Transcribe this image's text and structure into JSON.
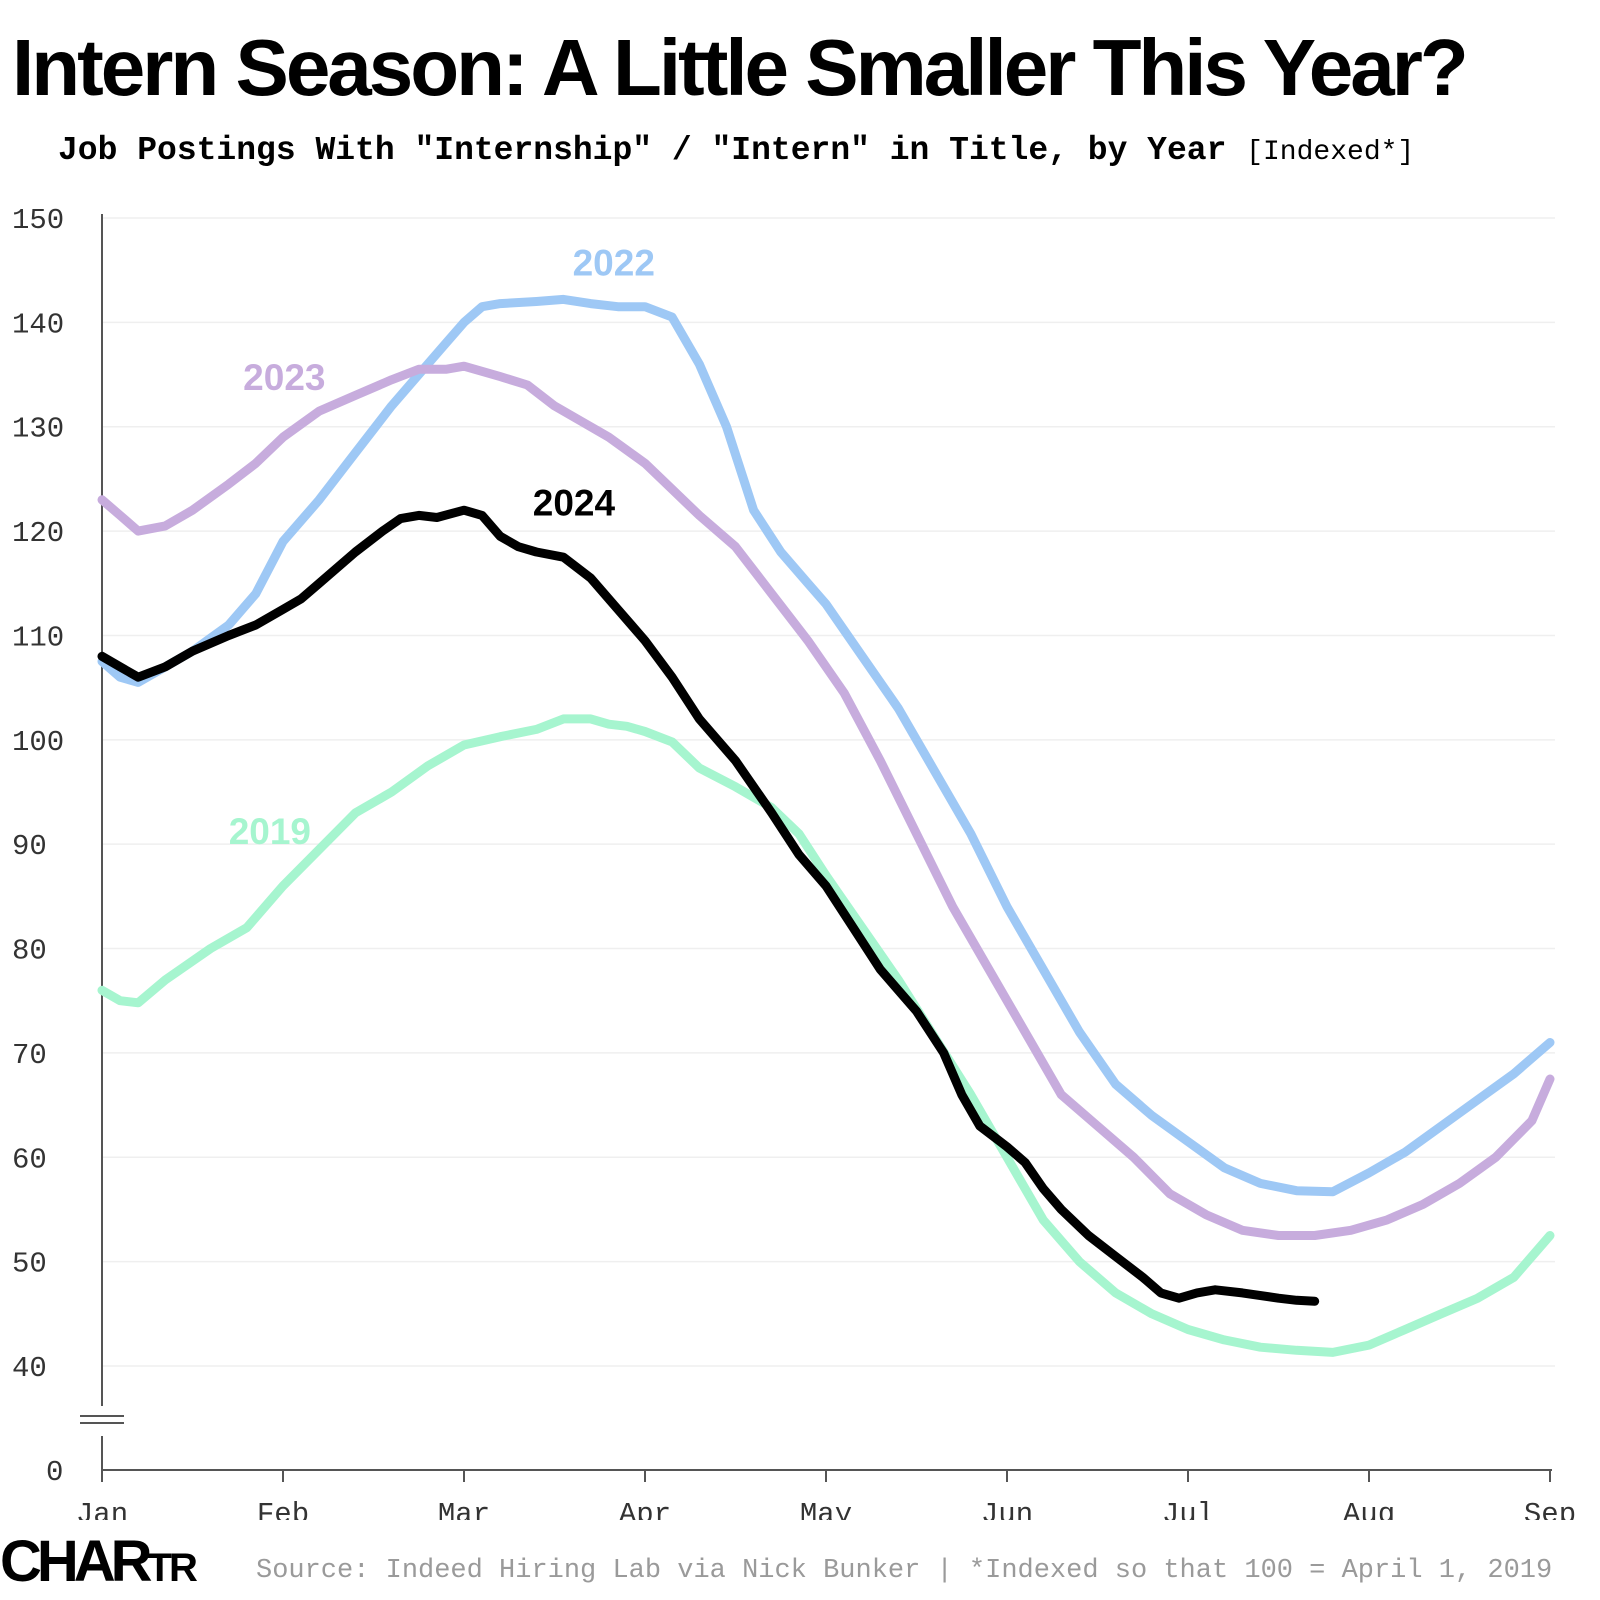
{
  "title": "Intern Season: A Little Smaller This Year?",
  "subtitle": "Job Postings With \"Internship\" / \"Intern\" in Title, by Year",
  "subtitle_note": "[Indexed*]",
  "logo": {
    "big": "CHAR",
    "small": "TR"
  },
  "source": "Source: Indeed Hiring Lab via Nick Bunker | *Indexed so that 100 = April 1, 2019",
  "chart_data": {
    "type": "line",
    "x_unit": "month",
    "xlim": [
      0,
      8
    ],
    "x_ticks": [
      0,
      1,
      2,
      3,
      4,
      5,
      6,
      7,
      8
    ],
    "x_tick_labels": [
      "Jan",
      "Feb",
      "Mar",
      "Apr",
      "May",
      "Jun",
      "Jul",
      "Aug",
      "Sep"
    ],
    "ylim": [
      40,
      150
    ],
    "y_ticks": [
      40,
      50,
      60,
      70,
      80,
      90,
      100,
      110,
      120,
      130,
      140,
      150
    ],
    "y_axis_break": true,
    "y_break_label": "0",
    "grid": "horizontal",
    "series": [
      {
        "name": "2019",
        "color": "#a6f5cf",
        "label_at": [
          0.7,
          90
        ],
        "points": [
          [
            0,
            76
          ],
          [
            0.1,
            75
          ],
          [
            0.2,
            74.8
          ],
          [
            0.35,
            77
          ],
          [
            0.6,
            80
          ],
          [
            0.8,
            82
          ],
          [
            1,
            86
          ],
          [
            1.2,
            89.5
          ],
          [
            1.4,
            93
          ],
          [
            1.6,
            95
          ],
          [
            1.8,
            97.5
          ],
          [
            2,
            99.5
          ],
          [
            2.2,
            100.3
          ],
          [
            2.4,
            101
          ],
          [
            2.55,
            102
          ],
          [
            2.7,
            102
          ],
          [
            2.8,
            101.5
          ],
          [
            2.9,
            101.3
          ],
          [
            3,
            100.8
          ],
          [
            3.15,
            99.8
          ],
          [
            3.3,
            97.3
          ],
          [
            3.5,
            95.5
          ],
          [
            3.7,
            93.5
          ],
          [
            3.85,
            91
          ],
          [
            4,
            87
          ],
          [
            4.2,
            82
          ],
          [
            4.4,
            77
          ],
          [
            4.6,
            71.5
          ],
          [
            4.8,
            66
          ],
          [
            5,
            60
          ],
          [
            5.2,
            54
          ],
          [
            5.4,
            50
          ],
          [
            5.6,
            47
          ],
          [
            5.8,
            45
          ],
          [
            6,
            43.5
          ],
          [
            6.2,
            42.5
          ],
          [
            6.4,
            41.8
          ],
          [
            6.6,
            41.5
          ],
          [
            6.8,
            41.3
          ],
          [
            7,
            42
          ],
          [
            7.2,
            43.5
          ],
          [
            7.4,
            45
          ],
          [
            7.6,
            46.5
          ],
          [
            7.8,
            48.5
          ],
          [
            8,
            52.5
          ]
        ]
      },
      {
        "name": "2022",
        "color": "#9ec8f5",
        "label_at": [
          2.6,
          144.5
        ],
        "points": [
          [
            0,
            107.5
          ],
          [
            0.1,
            106
          ],
          [
            0.2,
            105.5
          ],
          [
            0.35,
            107
          ],
          [
            0.5,
            108.5
          ],
          [
            0.7,
            111
          ],
          [
            0.85,
            114
          ],
          [
            1,
            119
          ],
          [
            1.2,
            123
          ],
          [
            1.4,
            127.5
          ],
          [
            1.6,
            132
          ],
          [
            1.8,
            136
          ],
          [
            1.9,
            138
          ],
          [
            2,
            140
          ],
          [
            2.1,
            141.5
          ],
          [
            2.2,
            141.8
          ],
          [
            2.4,
            142
          ],
          [
            2.55,
            142.2
          ],
          [
            2.7,
            141.8
          ],
          [
            2.85,
            141.5
          ],
          [
            3,
            141.5
          ],
          [
            3.15,
            140.5
          ],
          [
            3.3,
            136
          ],
          [
            3.45,
            130
          ],
          [
            3.6,
            122
          ],
          [
            3.75,
            118
          ],
          [
            3.9,
            115
          ],
          [
            4,
            113
          ],
          [
            4.2,
            108
          ],
          [
            4.4,
            103
          ],
          [
            4.6,
            97
          ],
          [
            4.8,
            91
          ],
          [
            5,
            84
          ],
          [
            5.2,
            78
          ],
          [
            5.4,
            72
          ],
          [
            5.6,
            67
          ],
          [
            5.8,
            64
          ],
          [
            6,
            61.5
          ],
          [
            6.2,
            59
          ],
          [
            6.4,
            57.5
          ],
          [
            6.6,
            56.8
          ],
          [
            6.8,
            56.7
          ],
          [
            7,
            58.5
          ],
          [
            7.2,
            60.5
          ],
          [
            7.4,
            63
          ],
          [
            7.6,
            65.5
          ],
          [
            7.8,
            68
          ],
          [
            8,
            71
          ]
        ]
      },
      {
        "name": "2023",
        "color": "#c7acdd",
        "label_at": [
          0.78,
          133.5
        ],
        "points": [
          [
            0,
            123
          ],
          [
            0.1,
            121.5
          ],
          [
            0.2,
            120
          ],
          [
            0.35,
            120.5
          ],
          [
            0.5,
            122
          ],
          [
            0.7,
            124.5
          ],
          [
            0.85,
            126.5
          ],
          [
            1,
            129
          ],
          [
            1.2,
            131.5
          ],
          [
            1.4,
            133
          ],
          [
            1.6,
            134.5
          ],
          [
            1.75,
            135.5
          ],
          [
            1.9,
            135.5
          ],
          [
            2,
            135.8
          ],
          [
            2.2,
            134.8
          ],
          [
            2.35,
            134
          ],
          [
            2.5,
            132
          ],
          [
            2.65,
            130.5
          ],
          [
            2.8,
            129
          ],
          [
            3,
            126.5
          ],
          [
            3.15,
            124
          ],
          [
            3.3,
            121.5
          ],
          [
            3.5,
            118.5
          ],
          [
            3.7,
            114
          ],
          [
            3.9,
            109.5
          ],
          [
            4.1,
            104.5
          ],
          [
            4.3,
            98
          ],
          [
            4.5,
            91
          ],
          [
            4.7,
            84
          ],
          [
            4.9,
            78
          ],
          [
            5.1,
            72
          ],
          [
            5.3,
            66
          ],
          [
            5.5,
            63
          ],
          [
            5.7,
            60
          ],
          [
            5.9,
            56.5
          ],
          [
            6.1,
            54.5
          ],
          [
            6.3,
            53
          ],
          [
            6.5,
            52.5
          ],
          [
            6.7,
            52.5
          ],
          [
            6.9,
            53
          ],
          [
            7.1,
            54
          ],
          [
            7.3,
            55.5
          ],
          [
            7.5,
            57.5
          ],
          [
            7.7,
            60
          ],
          [
            7.9,
            63.5
          ],
          [
            8,
            67.5
          ]
        ]
      },
      {
        "name": "2024",
        "color": "#000000",
        "label_at": [
          2.38,
          121.5
        ],
        "points": [
          [
            0,
            108
          ],
          [
            0.1,
            107
          ],
          [
            0.2,
            106
          ],
          [
            0.35,
            107
          ],
          [
            0.5,
            108.5
          ],
          [
            0.7,
            110
          ],
          [
            0.85,
            111
          ],
          [
            1,
            112.5
          ],
          [
            1.1,
            113.5
          ],
          [
            1.2,
            115
          ],
          [
            1.4,
            118
          ],
          [
            1.55,
            120
          ],
          [
            1.65,
            121.2
          ],
          [
            1.75,
            121.5
          ],
          [
            1.85,
            121.3
          ],
          [
            2,
            122
          ],
          [
            2.1,
            121.5
          ],
          [
            2.2,
            119.5
          ],
          [
            2.3,
            118.5
          ],
          [
            2.4,
            118
          ],
          [
            2.55,
            117.5
          ],
          [
            2.7,
            115.5
          ],
          [
            2.85,
            112.5
          ],
          [
            3,
            109.5
          ],
          [
            3.15,
            106
          ],
          [
            3.3,
            102
          ],
          [
            3.5,
            98
          ],
          [
            3.7,
            93
          ],
          [
            3.85,
            89
          ],
          [
            4,
            86
          ],
          [
            4.15,
            82
          ],
          [
            4.3,
            78
          ],
          [
            4.5,
            74
          ],
          [
            4.65,
            70
          ],
          [
            4.75,
            66
          ],
          [
            4.85,
            63
          ],
          [
            5,
            61
          ],
          [
            5.1,
            59.5
          ],
          [
            5.2,
            57
          ],
          [
            5.3,
            55
          ],
          [
            5.45,
            52.5
          ],
          [
            5.6,
            50.5
          ],
          [
            5.75,
            48.5
          ],
          [
            5.85,
            47
          ],
          [
            5.95,
            46.5
          ],
          [
            6.05,
            47
          ],
          [
            6.15,
            47.3
          ],
          [
            6.3,
            47
          ],
          [
            6.5,
            46.5
          ],
          [
            6.6,
            46.3
          ],
          [
            6.7,
            46.2
          ]
        ]
      }
    ]
  }
}
